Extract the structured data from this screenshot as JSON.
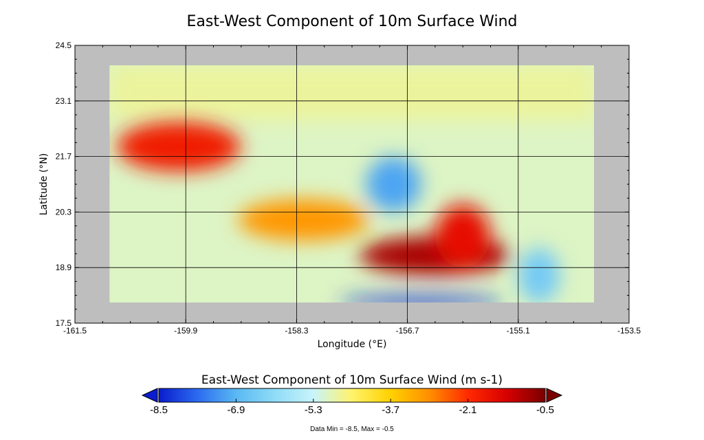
{
  "chart_data": {
    "type": "heatmap",
    "title": "East-West Component of 10m Surface Wind",
    "xlabel": "Longitude (°E)",
    "ylabel": "Latitude (°N)",
    "xlim": [
      -161.5,
      -153.5
    ],
    "ylim": [
      17.5,
      24.5
    ],
    "xticks": [
      "-161.5",
      "-159.9",
      "-158.3",
      "-156.7",
      "-155.1",
      "-153.5"
    ],
    "yticks": [
      "24.5",
      "23.1",
      "21.7",
      "20.3",
      "18.9",
      "17.5"
    ],
    "data_extent": {
      "lon": [
        -161.0,
        -154.0
      ],
      "lat": [
        18.0,
        24.0
      ]
    },
    "grid": true,
    "colorbar": {
      "title": "East-West Component of 10m Surface Wind (m s-1)",
      "ticks": [
        "-8.5",
        "-6.9",
        "-5.3",
        "-3.7",
        "-2.1",
        "-0.5"
      ],
      "range": [
        -8.5,
        -0.5
      ],
      "colors": [
        "#0a1ccc",
        "#2b6bf0",
        "#5ab8f2",
        "#8fdcf7",
        "#c8f4fa",
        "#fff36a",
        "#ffd100",
        "#ff8f00",
        "#ff2a00",
        "#d70000",
        "#7a0000"
      ]
    },
    "background_value": -5.0,
    "features": [
      {
        "lon": -160.0,
        "lat": 21.95,
        "value": -1.8
      },
      {
        "lon": -158.2,
        "lat": 20.1,
        "value": -3.0
      },
      {
        "lon": -156.3,
        "lat": 19.2,
        "value": -0.9
      },
      {
        "lon": -155.9,
        "lat": 19.7,
        "value": -1.6
      },
      {
        "lon": -156.9,
        "lat": 21.0,
        "value": -7.1
      },
      {
        "lon": -156.5,
        "lat": 18.05,
        "value": -8.3
      },
      {
        "lon": -154.8,
        "lat": 18.7,
        "value": -6.5
      }
    ]
  },
  "footer": "Data Min = -8.5, Max = -0.5"
}
